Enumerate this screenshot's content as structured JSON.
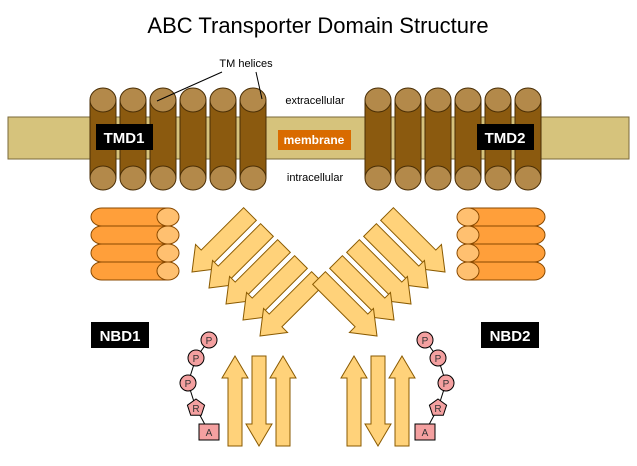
{
  "title": "ABC Transporter Domain Structure",
  "labels": {
    "tm_helices": "TM helices",
    "extracellular": "extracellular",
    "intracellular": "intracellular",
    "membrane": "membrane",
    "tmd1": "TMD1",
    "tmd2": "TMD2",
    "nbd1": "NBD1",
    "nbd2": "NBD2"
  },
  "chain_left": [
    "P",
    "P",
    "P",
    "R",
    "A"
  ],
  "chain_right": [
    "P",
    "P",
    "P",
    "R",
    "A"
  ],
  "colors": {
    "membrane_band": "#d6c37c",
    "helix_body": "#8b5a0f",
    "helix_cap": "#b3894a",
    "nbd_rod": "#ff9f3a",
    "nbd_cap": "#ffc070",
    "arrow_fill": "#ffd27a",
    "membrane_label_bg": "#d96b00",
    "label_box_bg": "#000000",
    "phosphate": "#f4a0a0",
    "adenine": "#f4a0a0"
  }
}
